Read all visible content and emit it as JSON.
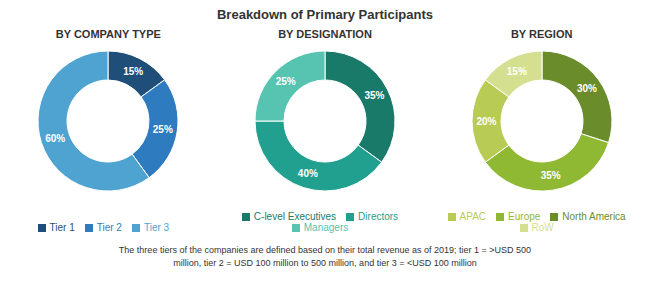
{
  "title": "Breakdown of Primary Participants",
  "annotations": [
    "The three tiers of the companies are defined based on their total revenue as of 2019; tier 1 = >USD 500",
    "million, tier 2 = USD 100 million to 500 million, and tier 3 = <USD 100 million"
  ],
  "chart_data": [
    {
      "type": "pie",
      "title": "BY COMPANY TYPE",
      "categories": [
        "Tier 1",
        "Tier 2",
        "Tier 3"
      ],
      "values": [
        15,
        25,
        60
      ],
      "value_labels": [
        "15%",
        "25%",
        "60%"
      ],
      "colors": [
        "#1f4e79",
        "#2f7bbf",
        "#4fa3d1"
      ],
      "data_labels": true,
      "legend": "bottom"
    },
    {
      "type": "pie",
      "title": "BY DESIGNATION",
      "categories": [
        "C-level Executives",
        "Directors",
        "Managers"
      ],
      "values": [
        35,
        40,
        25
      ],
      "value_labels": [
        "35%",
        "40%",
        "25%"
      ],
      "colors": [
        "#1a7a6a",
        "#21a090",
        "#56c4b0"
      ],
      "data_labels": true,
      "legend": "bottom"
    },
    {
      "type": "pie",
      "title": "BY REGION",
      "categories": [
        "North America",
        "Europe",
        "APAC",
        "RoW"
      ],
      "values": [
        30,
        35,
        20,
        15
      ],
      "value_labels": [
        "30%",
        "35%",
        "20%",
        "15%"
      ],
      "colors": [
        "#6b8c2a",
        "#8fb833",
        "#b8cc55",
        "#d4e090"
      ],
      "data_labels": true,
      "legend": "bottom"
    }
  ]
}
